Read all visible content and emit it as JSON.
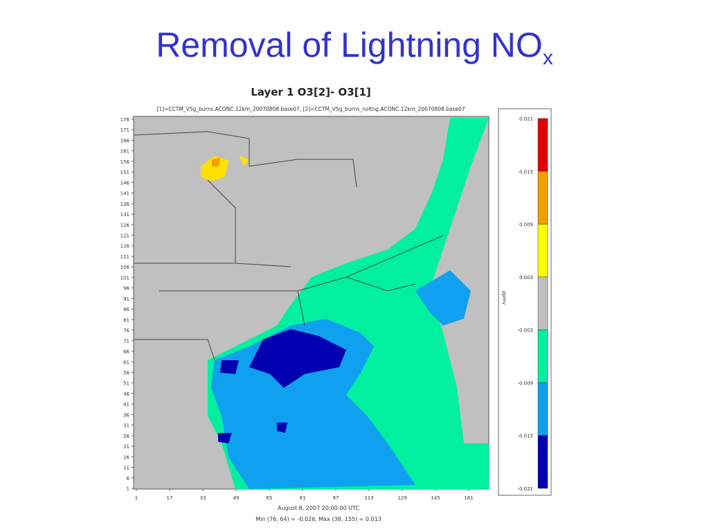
{
  "slide": {
    "title": "Removal of Lightning NO",
    "title_subscript": "x"
  },
  "plot": {
    "title": "Layer 1 O3[2]- O3[1]",
    "subtitle": "[1]=CCTM_V5g_burns.ACONC.12km_20070808.base07, [2]=CCTM_V5g_burns_noltng.ACONC.12km_20070808.base07",
    "y_ticks": [
      "176",
      "171",
      "166",
      "161",
      "156",
      "151",
      "146",
      "141",
      "136",
      "131",
      "126",
      "121",
      "116",
      "111",
      "106",
      "101",
      "96",
      "91",
      "86",
      "81",
      "76",
      "71",
      "66",
      "61",
      "56",
      "51",
      "46",
      "41",
      "36",
      "31",
      "26",
      "21",
      "16",
      "11",
      "6",
      "1"
    ],
    "x_ticks": [
      "1",
      "17",
      "33",
      "49",
      "65",
      "81",
      "97",
      "113",
      "129",
      "145",
      "161"
    ],
    "colorbar": {
      "labels": [
        "0.021",
        "0.015",
        "0.009",
        "0.003",
        "-0.003",
        "-0.009",
        "-0.015",
        "-0.021"
      ],
      "colors": [
        "#e00000",
        "#f0a000",
        "#ffff00",
        "#c0c0c0",
        "#00f0a0",
        "#10a0f0",
        "#0000b0"
      ],
      "unit": "ppmv"
    },
    "date": "August 8, 2007 20:00:00 UTC",
    "stats": "Min (76, 64) = -0.026, Max (38, 155) = 0.013"
  }
}
